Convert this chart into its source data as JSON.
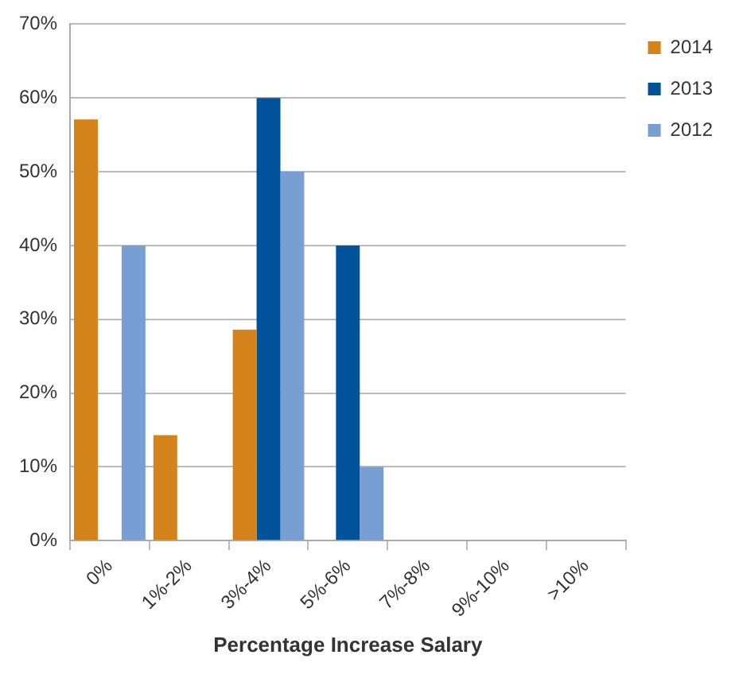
{
  "chart_data": {
    "type": "bar",
    "xlabel": "Percentage Increase Salary",
    "categories": [
      "0%",
      "1%-2%",
      "3%-4%",
      "5%-6%",
      "7%-8%",
      "9%-10%",
      ">10%"
    ],
    "series": [
      {
        "name": "2014",
        "color": "#d4821a",
        "values": [
          57.1,
          14.3,
          28.6,
          0,
          0,
          0,
          0
        ]
      },
      {
        "name": "2013",
        "color": "#00529b",
        "values": [
          0,
          0,
          60,
          40,
          0,
          0,
          0
        ]
      },
      {
        "name": "2012",
        "color": "#779fd4",
        "values": [
          40,
          0,
          50,
          10,
          0,
          0,
          0
        ]
      }
    ],
    "ylim": [
      0,
      70
    ],
    "yticks": [
      {
        "value": 0,
        "label": "0%"
      },
      {
        "value": 10,
        "label": "10%"
      },
      {
        "value": 20,
        "label": "20%"
      },
      {
        "value": 30,
        "label": "30%"
      },
      {
        "value": 40,
        "label": "40%"
      },
      {
        "value": 50,
        "label": "50%"
      },
      {
        "value": 60,
        "label": "60%"
      },
      {
        "value": 70,
        "label": "70%"
      }
    ],
    "grid": "y",
    "legend": "top right"
  }
}
